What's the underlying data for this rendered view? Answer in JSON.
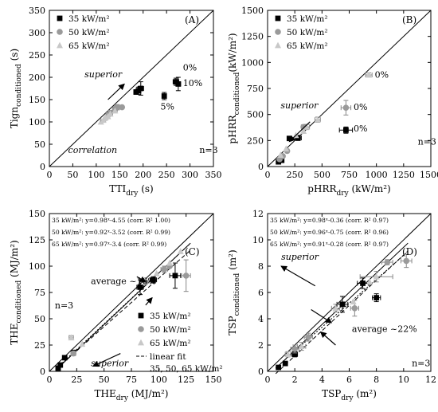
{
  "chart_data": [
    {
      "type": "scatter",
      "panel_label": "(A)",
      "xlabel": "TTI",
      "xlabel_sub": "dry",
      "xlabel_unit": " (s)",
      "ylabel": "Tign",
      "ylabel_sub": "conditioned",
      "ylabel_unit": " (s)",
      "xlim": [
        0,
        350
      ],
      "ylim": [
        0,
        350
      ],
      "xticks": [
        0,
        50,
        100,
        150,
        200,
        250,
        300,
        350
      ],
      "yticks": [
        0,
        50,
        100,
        150,
        200,
        250,
        300,
        350
      ],
      "grid": false,
      "diagonal": true,
      "legend_position": "top-left",
      "series": [
        {
          "name": "35 kW/m²",
          "marker": "square",
          "color": "#000000",
          "points": [
            [
              185,
              167,
              0,
              5
            ],
            [
              190,
              170,
              5,
              8
            ],
            [
              195,
              175,
              6,
              15
            ],
            [
              245,
              158,
              0,
              8
            ],
            [
              270,
              190,
              6,
              8
            ],
            [
              275,
              185,
              5,
              15
            ]
          ]
        },
        {
          "name": "50 kW/m²",
          "marker": "circle",
          "color": "#9a9a9a",
          "points": [
            [
              125,
              115,
              0,
              6
            ],
            [
              130,
              120,
              5,
              6
            ],
            [
              140,
              128,
              5,
              6
            ],
            [
              145,
              133,
              6,
              6
            ],
            [
              155,
              133,
              0,
              0
            ]
          ]
        },
        {
          "name": "65 kW/m²",
          "marker": "triangle",
          "color": "#c8c8c8",
          "points": [
            [
              110,
              100,
              0,
              0
            ],
            [
              115,
              104,
              5,
              0
            ],
            [
              118,
              108,
              0,
              0
            ],
            [
              120,
              110,
              0,
              0
            ],
            [
              125,
              112,
              0,
              0
            ],
            [
              130,
              118,
              0,
              0
            ],
            [
              140,
              125,
              0,
              0
            ]
          ]
        }
      ],
      "annotations": [
        {
          "text": "superior",
          "x": 75,
          "y": 200,
          "italic": true
        },
        {
          "text": "correlation",
          "x": 40,
          "y": 30,
          "italic": true
        },
        {
          "text": "0%",
          "x": 285,
          "y": 215
        },
        {
          "text": "10%",
          "x": 285,
          "y": 180
        },
        {
          "text": "5%",
          "x": 237,
          "y": 128
        },
        {
          "text": "n=3",
          "x": 320,
          "y": 30
        }
      ],
      "arrows": [
        [
          125,
          150,
          160,
          185
        ]
      ]
    },
    {
      "type": "scatter",
      "panel_label": "(B)",
      "xlabel": "pHRR",
      "xlabel_sub": "dry",
      "xlabel_unit": " (kW/m²)",
      "ylabel": "pHRR",
      "ylabel_sub": "conditioned",
      "ylabel_unit": "(kW/m²)",
      "xlim": [
        0,
        1500
      ],
      "ylim": [
        0,
        1500
      ],
      "xticks": [
        0,
        250,
        500,
        750,
        1000,
        1250,
        1500
      ],
      "yticks": [
        0,
        250,
        500,
        750,
        1000,
        1250,
        1500
      ],
      "grid": false,
      "diagonal": true,
      "legend_position": "top-left",
      "series": [
        {
          "name": "35 kW/m²",
          "marker": "square",
          "color": "#000000",
          "points": [
            [
              100,
              45,
              15,
              10
            ],
            [
              130,
              60,
              10,
              10
            ],
            [
              200,
              270,
              20,
              20
            ],
            [
              280,
              275,
              30,
              25
            ],
            [
              720,
              350,
              60,
              30
            ]
          ]
        },
        {
          "name": "50 kW/m²",
          "marker": "circle",
          "color": "#9a9a9a",
          "points": [
            [
              110,
              70,
              0,
              0
            ],
            [
              140,
              100,
              0,
              0
            ],
            [
              180,
              150,
              15,
              10
            ],
            [
              330,
              380,
              20,
              20
            ],
            [
              720,
              565,
              45,
              70
            ]
          ]
        },
        {
          "name": "65 kW/m²",
          "marker": "triangle",
          "color": "#c8c8c8",
          "points": [
            [
              120,
              110,
              0,
              0
            ],
            [
              170,
              170,
              0,
              0
            ],
            [
              260,
              300,
              0,
              0
            ],
            [
              330,
              340,
              0,
              0
            ],
            [
              360,
              380,
              25,
              25
            ],
            [
              460,
              450,
              25,
              25
            ],
            [
              930,
              880,
              30,
              20
            ]
          ]
        }
      ],
      "annotations": [
        {
          "text": "superior",
          "x": 120,
          "y": 560,
          "italic": true
        },
        {
          "text": "0%",
          "x": 985,
          "y": 855
        },
        {
          "text": "0%",
          "x": 790,
          "y": 545
        },
        {
          "text": "0%",
          "x": 790,
          "y": 335
        },
        {
          "text": "n=3",
          "x": 1380,
          "y": 210
        }
      ],
      "arrows": [
        [
          390,
          430,
          200,
          240
        ]
      ]
    },
    {
      "type": "scatter",
      "panel_label": "(C)",
      "xlabel": "THE",
      "xlabel_sub": "dry",
      "xlabel_unit": " (MJ/m²)",
      "ylabel": "THE",
      "ylabel_sub": "conditioned",
      "ylabel_unit": " (MJ/m²)",
      "xlim": [
        0,
        150
      ],
      "ylim": [
        0,
        150
      ],
      "xticks": [
        0,
        25,
        50,
        75,
        100,
        125,
        150
      ],
      "yticks": [
        0,
        25,
        50,
        75,
        100,
        125,
        150
      ],
      "grid": false,
      "diagonal": true,
      "legend_position": "bottom-right",
      "fits": [
        {
          "text": "35 kW/m²: y=0.98ˣ-4.55 (corr. R² 1.00)",
          "slope": 0.98,
          "intercept": -4.55
        },
        {
          "text": "50 kW/m²: y=0.92ˣ-3.52 (corr. R² 0.99)",
          "slope": 0.92,
          "intercept": -3.52
        },
        {
          "text": "65 kW/m²: y=0.97ˣ-3.4 (corr. R² 0.99)",
          "slope": 0.97,
          "intercept": -3.4
        }
      ],
      "linear_fit_label": "linear fit",
      "linear_fit_label2": "35, 50, 65 kW/m²",
      "series": [
        {
          "name": "35 kW/m²",
          "marker": "square",
          "color": "#000000",
          "points": [
            [
              8,
              3,
              2,
              2
            ],
            [
              10,
              6,
              2,
              2
            ],
            [
              14,
              13,
              2,
              2
            ],
            [
              22,
              18,
              2,
              2
            ],
            [
              83,
              80,
              3,
              7
            ],
            [
              95,
              87,
              3,
              3
            ],
            [
              115,
              91,
              5,
              12
            ]
          ]
        },
        {
          "name": "50 kW/m²",
          "marker": "circle",
          "color": "#9a9a9a",
          "points": [
            [
              22,
              17,
              2,
              2
            ],
            [
              88,
              85,
              0,
              0
            ],
            [
              105,
              97,
              3,
              3
            ],
            [
              110,
              100,
              0,
              0
            ],
            [
              125,
              91,
              4,
              15
            ]
          ]
        },
        {
          "name": "65 kW/m²",
          "marker": "triangle",
          "color": "#c8c8c8",
          "points": [
            [
              20,
              32,
              2,
              2
            ],
            [
              30,
              26,
              0,
              0
            ],
            [
              98,
              93,
              0,
              0
            ],
            [
              110,
              103,
              0,
              0
            ],
            [
              120,
              114,
              0,
              0
            ]
          ]
        }
      ],
      "annotations": [
        {
          "text": "average ~16%",
          "x": 38,
          "y": 83
        },
        {
          "text": "superior",
          "x": 38,
          "y": 5,
          "italic": true
        },
        {
          "text": "n=3",
          "x": 5,
          "y": 60
        }
      ],
      "arrows": [
        [
          65,
          17,
          40,
          5
        ],
        [
          80,
          90,
          88,
          85
        ],
        [
          88,
          63,
          94,
          70
        ]
      ]
    },
    {
      "type": "scatter",
      "panel_label": "(D)",
      "xlabel": "TSP",
      "xlabel_sub": "dry",
      "xlabel_unit": " (m²)",
      "ylabel": "TSP",
      "ylabel_sub": "conditioned",
      "ylabel_unit": " (m²)",
      "xlim": [
        0,
        12
      ],
      "ylim": [
        0,
        12
      ],
      "xticks": [
        0,
        2,
        4,
        6,
        8,
        10,
        12
      ],
      "yticks": [
        0,
        2,
        4,
        6,
        8,
        10,
        12
      ],
      "grid": false,
      "diagonal": true,
      "fits": [
        {
          "text": "35 kW/m²: y=0.98ˣ-0.36 (corr. R² 0.97)",
          "slope": 0.98,
          "intercept": -0.36
        },
        {
          "text": "50 kW/m²: y=0.96ˣ-0.75 (corr. R² 0.96)",
          "slope": 0.96,
          "intercept": -0.75
        },
        {
          "text": "65 kW/m²: y=0.91ˣ-0.28 (corr. R² 0.97)",
          "slope": 0.91,
          "intercept": -0.28
        }
      ],
      "series": [
        {
          "name": "35 kW/m²",
          "marker": "square",
          "color": "#000000",
          "points": [
            [
              0.8,
              0.3,
              0.1,
              0.1
            ],
            [
              1.3,
              0.6,
              0.15,
              0.1
            ],
            [
              2,
              1.3,
              0.2,
              0.2
            ],
            [
              5.5,
              5.1,
              0.4,
              0.6
            ],
            [
              7,
              6.7,
              0.4,
              0.4
            ],
            [
              8,
              5.6,
              0.3,
              0.3
            ]
          ]
        },
        {
          "name": "50 kW/m²",
          "marker": "circle",
          "color": "#9a9a9a",
          "points": [
            [
              2,
              1.7,
              0.3,
              0.3
            ],
            [
              3,
              2.6,
              0.3,
              0.3
            ],
            [
              6.4,
              4.8,
              0.3,
              0.6
            ],
            [
              8.8,
              8.3,
              0.4,
              0.2
            ],
            [
              10.2,
              8.4,
              0.4,
              0.5
            ]
          ]
        },
        {
          "name": "65 kW/m²",
          "marker": "triangle",
          "color": "#c8c8c8",
          "points": [
            [
              1.5,
              1.3,
              0.2,
              0.2
            ],
            [
              2.5,
              1.9,
              0.3,
              0.3
            ],
            [
              5,
              4.8,
              0.3,
              0.3
            ],
            [
              6.3,
              5.3,
              0,
              0
            ],
            [
              7.5,
              6.8,
              0,
              0
            ],
            [
              8,
              7.2,
              1.2,
              0.4
            ]
          ]
        }
      ],
      "annotations": [
        {
          "text": "superior",
          "x": 1.0,
          "y": 8.5,
          "italic": true
        },
        {
          "text": "average ~22%",
          "x": 6.2,
          "y": 3.0
        },
        {
          "text": "n=3",
          "x": 10.6,
          "y": 0.4
        }
      ],
      "arrows": [
        [
          3.5,
          6.5,
          1.0,
          8.0
        ],
        [
          3.2,
          4.7,
          4.7,
          3.7
        ],
        [
          5.0,
          2.0,
          3.9,
          3.0
        ]
      ]
    }
  ]
}
